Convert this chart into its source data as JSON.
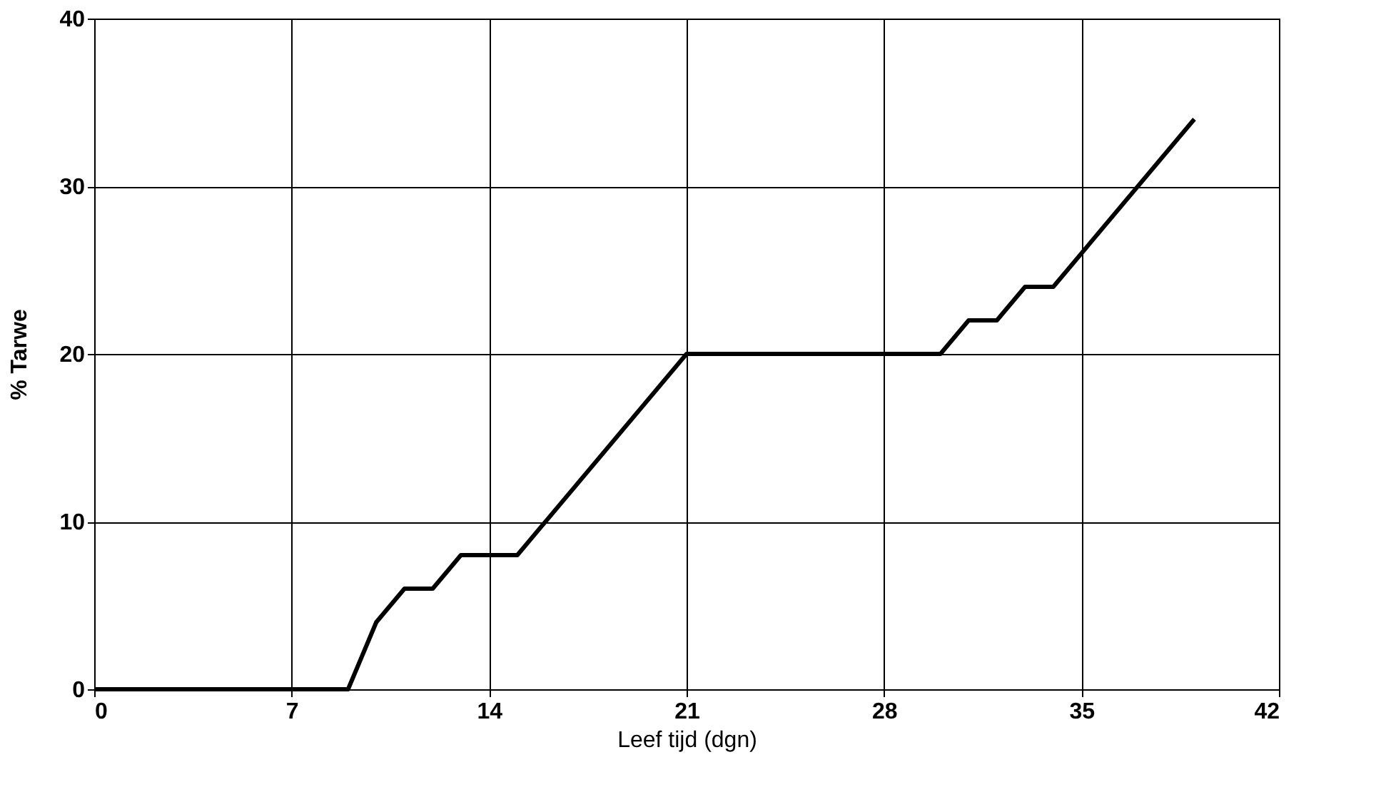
{
  "chart_data": {
    "type": "line",
    "xlabel": "Leef tijd (dgn)",
    "ylabel": "% Tarwe",
    "x": [
      0,
      9,
      10,
      11,
      12,
      13,
      15,
      21,
      30,
      31,
      32,
      33,
      34,
      39
    ],
    "series": [
      {
        "color": "#000000",
        "values": [
          0,
          0,
          4,
          6,
          6,
          8,
          8,
          20,
          20,
          22,
          22,
          24,
          24,
          34
        ]
      }
    ],
    "xlim": [
      0,
      42
    ],
    "xticks": [
      0,
      7,
      14,
      21,
      28,
      35,
      42
    ],
    "ylim": [
      0,
      40
    ],
    "yticks": [
      0,
      10,
      20,
      30,
      40
    ],
    "grid": true,
    "marker": "none",
    "line_style": "solid"
  }
}
